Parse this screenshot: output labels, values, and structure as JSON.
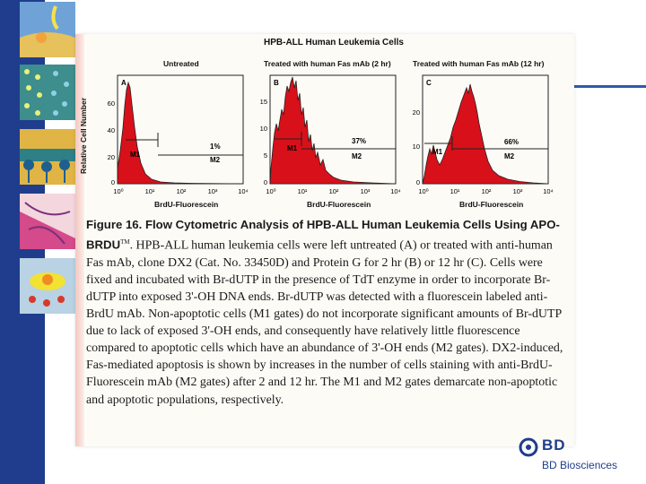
{
  "figure": {
    "title": "HPB-ALL Human Leukemia Cells",
    "y_axis_label": "Relative Cell Number",
    "panels": [
      {
        "title": "Untreated",
        "letter": "A",
        "xlabel": "BrdU-Fluorescein",
        "y_ticks": [
          "0",
          "20",
          "40",
          "60"
        ],
        "x_ticks": [
          "10⁰",
          "10¹",
          "10²",
          "10³",
          "10⁴"
        ],
        "m1_label": "M1",
        "m2_label": "M2",
        "m2_percent": "1%"
      },
      {
        "title": "Treated with human Fas mAb (2 hr)",
        "letter": "B",
        "xlabel": "BrdU-Fluorescein",
        "y_ticks": [
          "0",
          "5",
          "10",
          "15"
        ],
        "x_ticks": [
          "10⁰",
          "10¹",
          "10²",
          "10³",
          "10⁴"
        ],
        "m1_label": "M1",
        "m2_label": "M2",
        "m2_percent": "37%"
      },
      {
        "title": "Treated with human Fas mAb (12 hr)",
        "letter": "C",
        "xlabel": "BrdU-Fluorescein",
        "y_ticks": [
          "0",
          "10",
          "20"
        ],
        "x_ticks": [
          "10⁰",
          "10¹",
          "10²",
          "10³",
          "10⁴"
        ],
        "m1_label": "M1",
        "m2_label": "M2",
        "m2_percent": "66%"
      }
    ]
  },
  "caption": {
    "heading": "Figure 16. Flow Cytometric Analysis of HPB-ALL Human Leukemia Cells Using APO-BRDU",
    "trademark": "TM",
    "body": ". HPB-ALL human leukemia cells were left untreated (A) or treated with anti-human Fas mAb, clone DX2 (Cat. No. 33450D) and Protein G for 2 hr (B) or 12 hr (C). Cells were fixed and incubated with Br-dUTP in the presence of TdT enzyme in order to incorporate Br-dUTP into exposed 3'-OH DNA ends. Br-dUTP was detected with a fluorescein labeled anti-BrdU mAb. Non-apoptotic cells (M1 gates) do not incorporate significant amounts of Br-dUTP due to lack of exposed 3'-OH ends, and consequently have relatively little fluorescence compared to apoptotic cells which have an abundance of 3'-OH ends (M2 gates). DX2-induced, Fas-mediated apoptosis is shown by increases in the number of cells staining with anti-BrdU-Fluorescein mAb (M2 gates) after 2 and 12 hr. The M1 and M2 gates demarcate non-apoptotic and apoptotic populations, respectively."
  },
  "branding": {
    "logo_text": "BD",
    "company": "BD Biosciences"
  },
  "colors": {
    "sidebar": "#1f3d8c",
    "histogram": "#d8101a",
    "brand": "#1f3d8c"
  }
}
